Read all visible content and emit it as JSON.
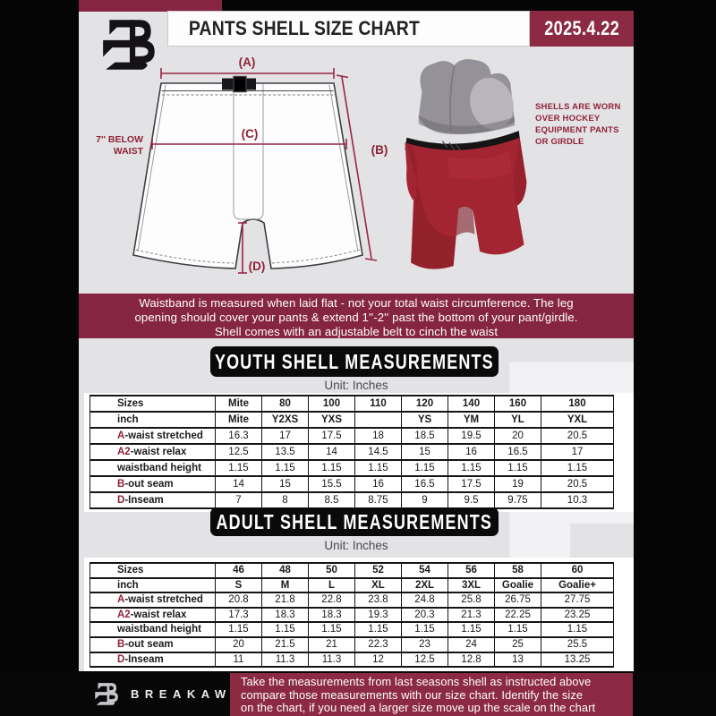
{
  "header": {
    "title": "PANTS SHELL SIZE CHART",
    "date": "2025.4.22"
  },
  "diagram": {
    "label_a": "(A)",
    "label_b": "(B)",
    "label_c": "(C)",
    "label_d": "(D)",
    "below_waist": [
      "7'' BELOW",
      "WAIST"
    ],
    "side_note": [
      "SHELLS ARE WORN",
      "OVER HOCKEY",
      "EQUIPMENT PANTS",
      "OR GIRDLE"
    ]
  },
  "banner": {
    "lines": [
      "Waistband is measured when laid flat - not your total waist circumference. The leg",
      "opening should cover your pants & extend 1''-2'' past the bottom of your pant/girdle.",
      "Shell comes with an adjustable belt to cinch the waist"
    ]
  },
  "youth": {
    "heading": "YOUTH SHELL MEASUREMENTS",
    "unit": "Unit: Inches",
    "table": {
      "rows": [
        {
          "label": "Sizes",
          "header": true,
          "values": [
            "Mite",
            "80",
            "100",
            "110",
            "120",
            "140",
            "160",
            "180"
          ]
        },
        {
          "label": "inch",
          "header": true,
          "values": [
            "Mite",
            "Y2XS",
            "YXS",
            "",
            "YS",
            "YM",
            "YL",
            "YXL"
          ]
        },
        {
          "prefix": "A",
          "label": "-waist stretched",
          "values": [
            "16.3",
            "17",
            "17.5",
            "18",
            "18.5",
            "19.5",
            "20",
            "20.5"
          ]
        },
        {
          "prefix": "A2",
          "label": "-waist relax",
          "values": [
            "12.5",
            "13.5",
            "14",
            "14.5",
            "15",
            "16",
            "16.5",
            "17"
          ]
        },
        {
          "label": "waistband height",
          "values": [
            "1.15",
            "1.15",
            "1.15",
            "1.15",
            "1.15",
            "1.15",
            "1.15",
            "1.15"
          ]
        },
        {
          "prefix": "B",
          "label": "-out seam",
          "values": [
            "14",
            "15",
            "15.5",
            "16",
            "16.5",
            "17.5",
            "19",
            "20.5"
          ]
        },
        {
          "prefix": "D",
          "label": "-Inseam",
          "values": [
            "7",
            "8",
            "8.5",
            "8.75",
            "9",
            "9.5",
            "9.75",
            "10.3"
          ]
        }
      ]
    }
  },
  "adult": {
    "heading": "ADULT SHELL MEASUREMENTS",
    "unit": "Unit: Inches",
    "table": {
      "rows": [
        {
          "label": "Sizes",
          "header": true,
          "values": [
            "46",
            "48",
            "50",
            "52",
            "54",
            "56",
            "58",
            "60"
          ]
        },
        {
          "label": "inch",
          "header": true,
          "values": [
            "S",
            "M",
            "L",
            "XL",
            "2XL",
            "3XL",
            "Goalie",
            "Goalie+"
          ]
        },
        {
          "prefix": "A",
          "label": "-waist stretched",
          "values": [
            "20.8",
            "21.8",
            "22.8",
            "23.8",
            "24.8",
            "25.8",
            "26.75",
            "27.75"
          ]
        },
        {
          "prefix": "A2",
          "label": "-waist relax",
          "values": [
            "17.3",
            "18.3",
            "18.3",
            "19.3",
            "20.3",
            "21.3",
            "22.25",
            "23.25"
          ]
        },
        {
          "label": "waistband height",
          "values": [
            "1.15",
            "1.15",
            "1.15",
            "1.15",
            "1.15",
            "1.15",
            "1.15",
            "1.15"
          ]
        },
        {
          "prefix": "B",
          "label": "-out seam",
          "values": [
            "20",
            "21.5",
            "21",
            "22.3",
            "23",
            "24",
            "25",
            "25.5"
          ]
        },
        {
          "prefix": "D",
          "label": "-Inseam",
          "values": [
            "11",
            "11.3",
            "11.3",
            "12",
            "12.5",
            "12.8",
            "13",
            "13.25"
          ]
        }
      ]
    }
  },
  "footer": {
    "brand": "BREAKAWAY",
    "lines": [
      "Take the measurements from last seasons shell as instructed above",
      "compare those measurements with our size chart. Identify the size",
      "on the chart, if you need a larger size move up the scale on the chart"
    ]
  },
  "watermark_letter": "B",
  "colors": {
    "maroon": "#862542",
    "maroon_bright": "#8c2a44",
    "accent_line": "#9c2444",
    "bg_gray": "#e3e2e5",
    "page_black": "#050505",
    "table_border": "#141414"
  }
}
